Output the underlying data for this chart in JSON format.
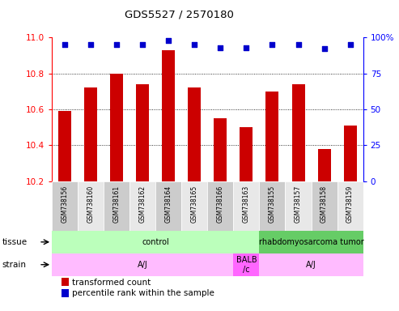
{
  "title": "GDS5527 / 2570180",
  "samples": [
    "GSM738156",
    "GSM738160",
    "GSM738161",
    "GSM738162",
    "GSM738164",
    "GSM738165",
    "GSM738166",
    "GSM738163",
    "GSM738155",
    "GSM738157",
    "GSM738158",
    "GSM738159"
  ],
  "bar_values": [
    10.59,
    10.72,
    10.8,
    10.74,
    10.93,
    10.72,
    10.55,
    10.5,
    10.7,
    10.74,
    10.38,
    10.51
  ],
  "pct_values": [
    95,
    95,
    95,
    95,
    98,
    95,
    93,
    93,
    95,
    95,
    92,
    95
  ],
  "bar_color": "#cc0000",
  "percentile_color": "#0000cc",
  "ylim_left": [
    10.2,
    11.0
  ],
  "ylim_right": [
    0,
    100
  ],
  "yticks_left": [
    10.2,
    10.4,
    10.6,
    10.8,
    11.0
  ],
  "yticks_right": [
    0,
    25,
    50,
    75,
    100
  ],
  "grid_lines": [
    10.4,
    10.6,
    10.8
  ],
  "tick_bg_colors": [
    "#cccccc",
    "#e8e8e8"
  ],
  "tissue_groups": [
    {
      "text": "control",
      "start": 0,
      "end": 7,
      "color": "#bbffbb"
    },
    {
      "text": "rhabdomyosarcoma tumor",
      "start": 8,
      "end": 11,
      "color": "#66cc66"
    }
  ],
  "strain_groups": [
    {
      "text": "A/J",
      "start": 0,
      "end": 6,
      "color": "#ffbbff"
    },
    {
      "text": "BALB\n/c",
      "start": 7,
      "end": 7,
      "color": "#ff66ff"
    },
    {
      "text": "A/J",
      "start": 8,
      "end": 11,
      "color": "#ffbbff"
    }
  ],
  "row_labels": [
    "tissue",
    "strain"
  ],
  "legend_items": [
    {
      "label": "transformed count",
      "color": "#cc0000"
    },
    {
      "label": "percentile rank within the sample",
      "color": "#0000cc"
    }
  ],
  "background_color": "#ffffff"
}
